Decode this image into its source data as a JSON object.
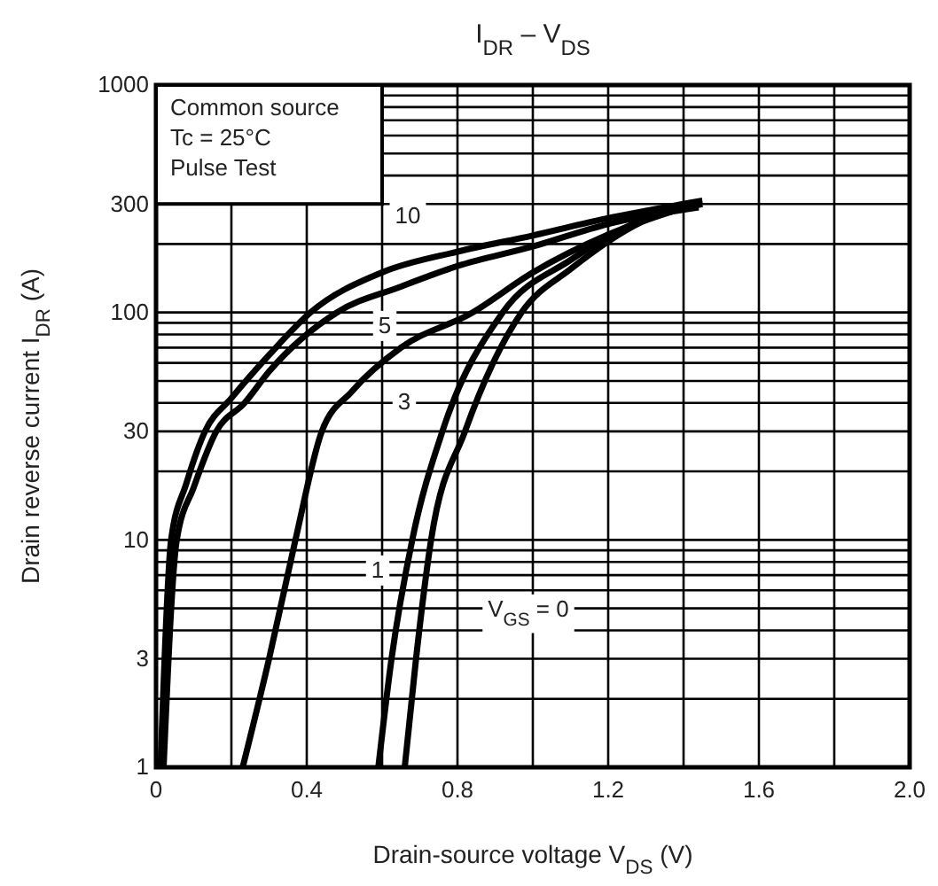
{
  "chart_data": {
    "type": "line",
    "title": "I$_{DR}$ – V$_{DS}$",
    "xlabel": "Drain-source voltage  V$_{DS}$  (V)",
    "ylabel": "Drain reverse current  I$_{DR}$  (A)",
    "log": "y",
    "grid": true,
    "marker": "none",
    "line_style": "solid",
    "xlim": [
      0,
      2
    ],
    "ylim": [
      1,
      1000
    ],
    "xticks": [
      0,
      {
        "value": 0.2,
        "label": null
      },
      0.4,
      {
        "value": 0.6,
        "label": null
      },
      0.8,
      {
        "value": 1,
        "label": null
      },
      1.2,
      {
        "value": 1.4,
        "label": null
      },
      1.6,
      {
        "value": 1.8,
        "label": null
      },
      {
        "value": 2,
        "label": "2.0"
      }
    ],
    "yticks": [
      1,
      {
        "value": 2,
        "label": null
      },
      3,
      {
        "value": 4,
        "label": null
      },
      {
        "value": 5,
        "label": null
      },
      {
        "value": 6,
        "label": null
      },
      {
        "value": 7,
        "label": null
      },
      {
        "value": 8,
        "label": null
      },
      {
        "value": 9,
        "label": null
      },
      10,
      {
        "value": 20,
        "label": null
      },
      30,
      {
        "value": 40,
        "label": null
      },
      {
        "value": 50,
        "label": null
      },
      {
        "value": 60,
        "label": null
      },
      {
        "value": 70,
        "label": null
      },
      {
        "value": 80,
        "label": null
      },
      {
        "value": 90,
        "label": null
      },
      100,
      {
        "value": 200,
        "label": null
      },
      300,
      {
        "value": 400,
        "label": null
      },
      {
        "value": 500,
        "label": null
      },
      {
        "value": 600,
        "label": null
      },
      {
        "value": 700,
        "label": null
      },
      {
        "value": 800,
        "label": null
      },
      {
        "value": 900,
        "label": null
      },
      1000
    ],
    "series": [
      {
        "name": "10",
        "color": "#000000",
        "x": [
          0.012,
          0.04,
          0.08,
          0.13,
          0.2,
          0.3,
          0.41,
          0.6,
          0.8,
          1.0,
          1.2,
          1.45
        ],
        "values": [
          1,
          10,
          17.6,
          30,
          42,
          65,
          100,
          150,
          185,
          218,
          260,
          310
        ]
      },
      {
        "name": "5",
        "color": "#000000",
        "x": [
          0.02,
          0.055,
          0.1,
          0.16,
          0.235,
          0.3,
          0.48,
          0.65,
          0.8,
          1.0,
          1.2,
          1.44
        ],
        "values": [
          1,
          10,
          17,
          30,
          40,
          55,
          100,
          130,
          160,
          195,
          245,
          290
        ]
      },
      {
        "name": "3",
        "color": "#000000",
        "x": [
          0.23,
          0.3,
          0.37,
          0.44,
          0.52,
          0.65,
          0.84,
          1.0,
          1.2,
          1.42
        ],
        "values": [
          1,
          3,
          10,
          30,
          45,
          70,
          100,
          150,
          220,
          295
        ]
      },
      {
        "name": "1",
        "color": "#000000",
        "x": [
          0.59,
          0.625,
          0.68,
          0.76,
          0.92,
          1.1,
          1.3,
          1.42
        ],
        "values": [
          1,
          3,
          10,
          30,
          100,
          170,
          260,
          300
        ]
      },
      {
        "name": "V$_{GS}$ = 0",
        "color": "#000000",
        "x": [
          0.66,
          0.69,
          0.73,
          0.82,
          0.97,
          1.1,
          1.3,
          1.45
        ],
        "values": [
          1,
          3,
          10,
          30,
          100,
          155,
          255,
          300
        ]
      }
    ],
    "annotations": [
      "Common source",
      "Tc = 25°C",
      "Pulse Test"
    ]
  }
}
